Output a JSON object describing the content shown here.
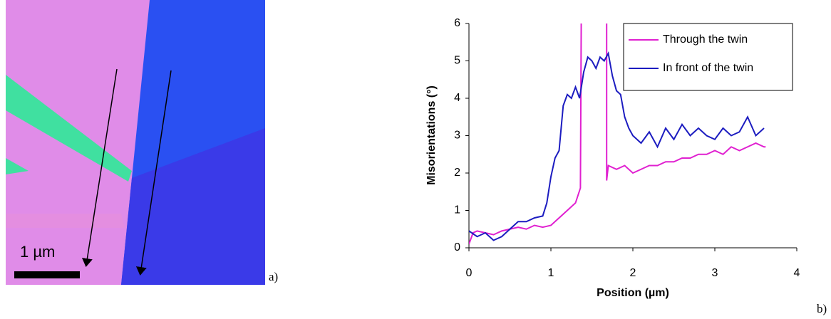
{
  "image": {
    "scale_label": "1 µm",
    "panel_label": "a)"
  },
  "chart_data": {
    "type": "line",
    "panel_label": "b)",
    "xlabel": "Position (µm)",
    "ylabel": "Misorientations (°)",
    "xlim": [
      0,
      4
    ],
    "xticks": [
      0,
      1,
      2,
      3,
      4
    ],
    "ylim": [
      0,
      6
    ],
    "yticks": [
      0,
      1,
      2,
      3,
      4,
      5,
      6
    ],
    "grid": false,
    "legend": "upper right",
    "series": [
      {
        "name": "Through the twin",
        "color": "#e020d0",
        "x": [
          0,
          0.05,
          0.1,
          0.2,
          0.3,
          0.4,
          0.5,
          0.6,
          0.7,
          0.8,
          0.9,
          1.0,
          1.1,
          1.2,
          1.3,
          1.36,
          1.37,
          1.5,
          1.68,
          1.68,
          1.7,
          1.8,
          1.9,
          2.0,
          2.1,
          2.2,
          2.3,
          2.4,
          2.5,
          2.6,
          2.7,
          2.8,
          2.9,
          3.0,
          3.1,
          3.2,
          3.3,
          3.4,
          3.5,
          3.6,
          3.62
        ],
        "values": [
          0.1,
          0.4,
          0.45,
          0.4,
          0.35,
          0.45,
          0.5,
          0.55,
          0.5,
          0.6,
          0.55,
          0.6,
          0.8,
          1.0,
          1.2,
          1.6,
          6,
          null,
          6,
          1.8,
          2.2,
          2.1,
          2.2,
          2.0,
          2.1,
          2.2,
          2.2,
          2.3,
          2.3,
          2.4,
          2.4,
          2.5,
          2.5,
          2.6,
          2.5,
          2.7,
          2.6,
          2.7,
          2.8,
          2.7,
          2.7
        ]
      },
      {
        "name": "In front of the twin",
        "color": "#1c1cc0",
        "x": [
          0,
          0.1,
          0.2,
          0.3,
          0.4,
          0.5,
          0.6,
          0.7,
          0.8,
          0.9,
          0.95,
          1.0,
          1.05,
          1.1,
          1.15,
          1.2,
          1.25,
          1.3,
          1.35,
          1.4,
          1.45,
          1.5,
          1.55,
          1.6,
          1.65,
          1.7,
          1.75,
          1.8,
          1.85,
          1.9,
          1.95,
          2.0,
          2.1,
          2.2,
          2.3,
          2.4,
          2.5,
          2.6,
          2.7,
          2.8,
          2.9,
          3.0,
          3.1,
          3.2,
          3.3,
          3.4,
          3.5,
          3.6
        ],
        "values": [
          0.45,
          0.3,
          0.4,
          0.2,
          0.3,
          0.5,
          0.7,
          0.7,
          0.8,
          0.85,
          1.2,
          1.9,
          2.4,
          2.6,
          3.8,
          4.1,
          4.0,
          4.3,
          4.0,
          4.7,
          5.1,
          5.0,
          4.8,
          5.1,
          5.0,
          5.2,
          4.6,
          4.2,
          4.1,
          3.5,
          3.2,
          3.0,
          2.8,
          3.1,
          2.7,
          3.2,
          2.9,
          3.3,
          3.0,
          3.2,
          3.0,
          2.9,
          3.2,
          3.0,
          3.1,
          3.5,
          3.0,
          3.2
        ]
      }
    ]
  }
}
